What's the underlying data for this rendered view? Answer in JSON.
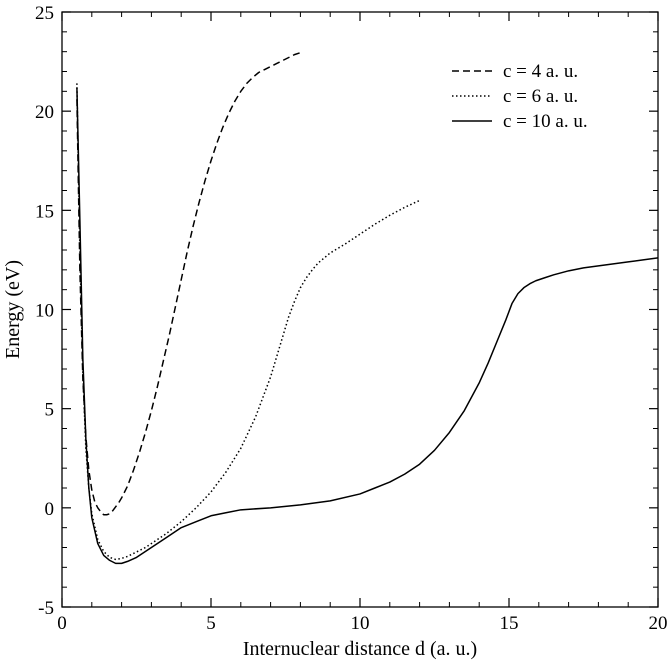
{
  "chart_data": {
    "type": "line",
    "title": "",
    "xlabel": "Internuclear distance d (a. u.)",
    "ylabel": "Energy (eV)",
    "xlim": [
      0,
      20
    ],
    "ylim": [
      -5,
      25
    ],
    "xticks": [
      0,
      5,
      10,
      15,
      20
    ],
    "yticks": [
      -5,
      0,
      5,
      10,
      15,
      20,
      25
    ],
    "xtick_labels": [
      "0",
      "5",
      "10",
      "15",
      "20"
    ],
    "ytick_labels": [
      "-5",
      "0",
      "5",
      "10",
      "15",
      "20",
      "25"
    ],
    "grid": false,
    "legend_position": "top-right",
    "series": [
      {
        "name": "c = 4 a. u.",
        "style": "dashed",
        "color": "#000000",
        "x": [
          0.5,
          0.6,
          0.7,
          0.8,
          0.9,
          1.0,
          1.1,
          1.2,
          1.3,
          1.4,
          1.5,
          1.6,
          1.7,
          1.8,
          1.9,
          2.0,
          2.2,
          2.4,
          2.6,
          2.8,
          3.0,
          3.2,
          3.4,
          3.6,
          3.8,
          4.0,
          4.2,
          4.4,
          4.6,
          4.8,
          5.0,
          5.2,
          5.4,
          5.6,
          5.8,
          6.0,
          6.2,
          6.4,
          6.6,
          6.8,
          7.0,
          7.2,
          7.4,
          7.6,
          7.8,
          8.0
        ],
        "y": [
          20.6,
          12.0,
          6.5,
          3.6,
          1.9,
          0.9,
          0.3,
          0.0,
          -0.2,
          -0.35,
          -0.35,
          -0.3,
          -0.15,
          0.05,
          0.25,
          0.5,
          1.1,
          1.9,
          2.8,
          3.8,
          4.9,
          6.1,
          7.4,
          8.7,
          10.1,
          11.5,
          12.9,
          14.2,
          15.4,
          16.5,
          17.5,
          18.4,
          19.2,
          19.9,
          20.5,
          21.0,
          21.4,
          21.7,
          21.95,
          22.1,
          22.25,
          22.4,
          22.55,
          22.7,
          22.85,
          22.95
        ]
      },
      {
        "name": "c = 6 a. u.",
        "style": "dotted",
        "color": "#000000",
        "x": [
          0.5,
          0.6,
          0.7,
          0.8,
          0.9,
          1.0,
          1.2,
          1.4,
          1.6,
          1.8,
          2.0,
          2.2,
          2.4,
          2.6,
          2.8,
          3.0,
          3.5,
          4.0,
          4.5,
          5.0,
          5.5,
          6.0,
          6.5,
          7.0,
          7.2,
          7.4,
          7.6,
          7.8,
          8.0,
          8.2,
          8.4,
          8.6,
          8.8,
          9.0,
          9.5,
          10.0,
          10.5,
          11.0,
          11.5,
          12.0
        ],
        "y": [
          21.4,
          13.0,
          6.8,
          3.0,
          1.0,
          -0.3,
          -1.6,
          -2.2,
          -2.5,
          -2.6,
          -2.55,
          -2.45,
          -2.3,
          -2.15,
          -2.0,
          -1.8,
          -1.3,
          -0.7,
          0.0,
          0.8,
          1.8,
          3.0,
          4.6,
          6.6,
          7.6,
          8.6,
          9.6,
          10.4,
          11.1,
          11.6,
          12.0,
          12.35,
          12.6,
          12.85,
          13.3,
          13.8,
          14.3,
          14.75,
          15.15,
          15.5
        ]
      },
      {
        "name": "c = 10 a. u.",
        "style": "solid",
        "color": "#000000",
        "x": [
          0.5,
          0.6,
          0.7,
          0.8,
          0.9,
          1.0,
          1.2,
          1.4,
          1.6,
          1.8,
          2.0,
          2.2,
          2.5,
          3.0,
          3.5,
          4.0,
          4.5,
          5.0,
          5.5,
          6.0,
          7.0,
          8.0,
          9.0,
          10.0,
          10.5,
          11.0,
          11.5,
          12.0,
          12.5,
          13.0,
          13.5,
          14.0,
          14.3,
          14.6,
          14.9,
          15.1,
          15.3,
          15.5,
          15.7,
          15.9,
          16.2,
          16.5,
          17.0,
          17.5,
          18.0,
          18.5,
          19.0,
          19.5,
          20.0
        ],
        "y": [
          21.2,
          14.5,
          7.5,
          3.5,
          1.0,
          -0.5,
          -1.8,
          -2.4,
          -2.65,
          -2.8,
          -2.8,
          -2.7,
          -2.5,
          -2.0,
          -1.5,
          -1.0,
          -0.7,
          -0.4,
          -0.25,
          -0.1,
          0.0,
          0.15,
          0.35,
          0.7,
          1.0,
          1.3,
          1.7,
          2.2,
          2.9,
          3.8,
          4.9,
          6.3,
          7.3,
          8.4,
          9.5,
          10.3,
          10.8,
          11.1,
          11.3,
          11.45,
          11.6,
          11.75,
          11.95,
          12.1,
          12.2,
          12.3,
          12.4,
          12.5,
          12.6
        ]
      }
    ]
  }
}
